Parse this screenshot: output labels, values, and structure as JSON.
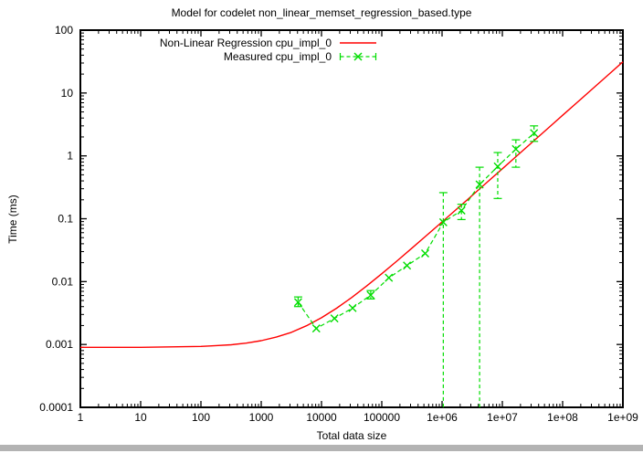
{
  "page": {
    "background": "#ffffff"
  },
  "scrollbar": {
    "color": "#b3b3b3"
  },
  "chart_data": {
    "type": "line",
    "title": "Model for codelet non_linear_memset_regression_based.type",
    "xlabel": "Total data size",
    "ylabel": "Time (ms)",
    "x_scale": "log",
    "y_scale": "log",
    "xlim": [
      1,
      1000000000
    ],
    "ylim": [
      0.0001,
      100
    ],
    "grid": false,
    "legend_position": "top-center-inside",
    "x_ticks": [
      {
        "label": "1",
        "value": 1
      },
      {
        "label": "10",
        "value": 10
      },
      {
        "label": "100",
        "value": 100
      },
      {
        "label": "1000",
        "value": 1000
      },
      {
        "label": "10000",
        "value": 10000
      },
      {
        "label": "100000",
        "value": 100000
      },
      {
        "label": "1e+06",
        "value": 1000000
      },
      {
        "label": "1e+07",
        "value": 10000000
      },
      {
        "label": "1e+08",
        "value": 100000000
      },
      {
        "label": "1e+09",
        "value": 1000000000
      }
    ],
    "y_ticks": [
      {
        "label": "100",
        "value": 100
      },
      {
        "label": "10",
        "value": 10
      },
      {
        "label": "1",
        "value": 1
      },
      {
        "label": "0.1",
        "value": 0.1
      },
      {
        "label": "0.01",
        "value": 0.01
      },
      {
        "label": "0.001",
        "value": 0.001
      },
      {
        "label": "0.0001",
        "value": 0.0001
      }
    ],
    "series": [
      {
        "name": "Non-Linear Regression cpu_impl_0",
        "color": "#ff0000",
        "style": "solid-line",
        "points": [
          [
            1,
            0.0009
          ],
          [
            10,
            0.0009
          ],
          [
            100,
            0.00093
          ],
          [
            178,
            0.00096
          ],
          [
            316,
            0.00099
          ],
          [
            562,
            0.00105
          ],
          [
            1000,
            0.00115
          ],
          [
            1778,
            0.00131
          ],
          [
            3162,
            0.00156
          ],
          [
            5623,
            0.00198
          ],
          [
            10000,
            0.00266
          ],
          [
            17783,
            0.00377
          ],
          [
            31623,
            0.00558
          ],
          [
            56234,
            0.00853
          ],
          [
            100000,
            0.01335
          ],
          [
            177828,
            0.0212
          ],
          [
            316228,
            0.034
          ],
          [
            562341,
            0.0549
          ],
          [
            1000000,
            0.089
          ],
          [
            1778279,
            0.1446
          ],
          [
            3162278,
            0.2345
          ],
          [
            5623413,
            0.383
          ],
          [
            10000000,
            0.624
          ],
          [
            17782794,
            1.018
          ],
          [
            31622777,
            1.66
          ],
          [
            56234133,
            2.709
          ],
          [
            100000000,
            4.42
          ],
          [
            177827941,
            7.21
          ],
          [
            316227766,
            11.75
          ],
          [
            562341325,
            19.17
          ],
          [
            1000000000,
            31.3
          ]
        ]
      },
      {
        "name": "Measured cpu_impl_0",
        "color": "#00dd00",
        "style": "dashed-line-x-markers-errorbars",
        "marker": "x",
        "points": [
          {
            "size": 4096,
            "ms": 0.0047,
            "lo": 0.004,
            "hi": 0.0057
          },
          {
            "size": 8192,
            "ms": 0.0018
          },
          {
            "size": 16384,
            "ms": 0.0026
          },
          {
            "size": 32768,
            "ms": 0.0038
          },
          {
            "size": 65536,
            "ms": 0.0061,
            "lo": 0.0053,
            "hi": 0.0072
          },
          {
            "size": 131072,
            "ms": 0.0115
          },
          {
            "size": 262144,
            "ms": 0.018
          },
          {
            "size": 524288,
            "ms": 0.028
          },
          {
            "size": 1048576,
            "ms": 0.088,
            "lo": 0.0001,
            "hi": 0.26,
            "clip_lo": true
          },
          {
            "size": 2097152,
            "ms": 0.135,
            "lo": 0.097,
            "hi": 0.17
          },
          {
            "size": 4194304,
            "ms": 0.35,
            "lo": 0.0001,
            "hi": 0.66,
            "clip_lo": true
          },
          {
            "size": 8388608,
            "ms": 0.68,
            "lo": 0.21,
            "hi": 1.13
          },
          {
            "size": 16777216,
            "ms": 1.28,
            "lo": 0.66,
            "hi": 1.8
          },
          {
            "size": 33554432,
            "ms": 2.3,
            "lo": 1.7,
            "hi": 3.0
          }
        ]
      }
    ]
  }
}
